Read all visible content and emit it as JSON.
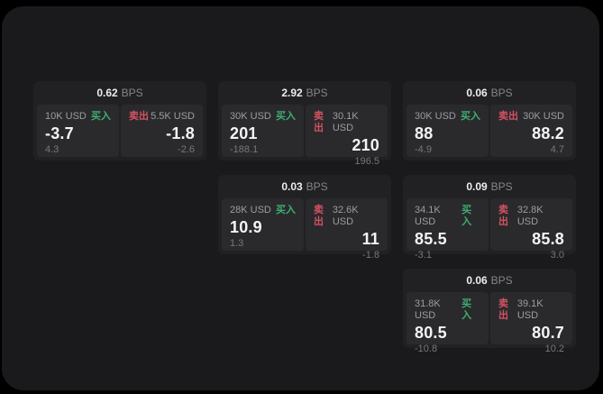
{
  "labels": {
    "bps_unit": "BPS",
    "buy": "买入",
    "sell": "卖出"
  },
  "colors": {
    "buy_green": "#3fae6f",
    "sell_red": "#d45261",
    "panel_bg": "#1a1a1c",
    "card_bg": "#212124",
    "cell_bg": "#2a2a2d"
  },
  "cards": [
    {
      "spread_bps": "0.62",
      "position": "row1-col1",
      "buy": {
        "size": "10K USD",
        "price": "-3.7",
        "sub": "4.3"
      },
      "sell": {
        "size": "5.5K USD",
        "price": "-1.8",
        "sub": "-2.6"
      }
    },
    {
      "spread_bps": "2.92",
      "position": "row1-col2",
      "buy": {
        "size": "30K USD",
        "price": "201",
        "sub": "-188.1"
      },
      "sell": {
        "size": "30.1K USD",
        "price": "210",
        "sub": "196.5"
      }
    },
    {
      "spread_bps": "0.06",
      "position": "row1-col3",
      "buy": {
        "size": "30K USD",
        "price": "88",
        "sub": "-4.9"
      },
      "sell": {
        "size": "30K USD",
        "price": "88.2",
        "sub": "4.7"
      }
    },
    {
      "spread_bps": "0.03",
      "position": "row2-col2",
      "buy": {
        "size": "28K USD",
        "price": "10.9",
        "sub": "1.3"
      },
      "sell": {
        "size": "32.6K USD",
        "price": "11",
        "sub": "-1.8"
      }
    },
    {
      "spread_bps": "0.09",
      "position": "row2-col3",
      "buy": {
        "size": "34.1K USD",
        "price": "85.5",
        "sub": "-3.1"
      },
      "sell": {
        "size": "32.8K USD",
        "price": "85.8",
        "sub": "3.0"
      }
    },
    {
      "spread_bps": "0.06",
      "position": "row3-col3",
      "buy": {
        "size": "31.8K USD",
        "price": "80.5",
        "sub": "-10.8"
      },
      "sell": {
        "size": "39.1K USD",
        "price": "80.7",
        "sub": "10.2"
      }
    }
  ]
}
